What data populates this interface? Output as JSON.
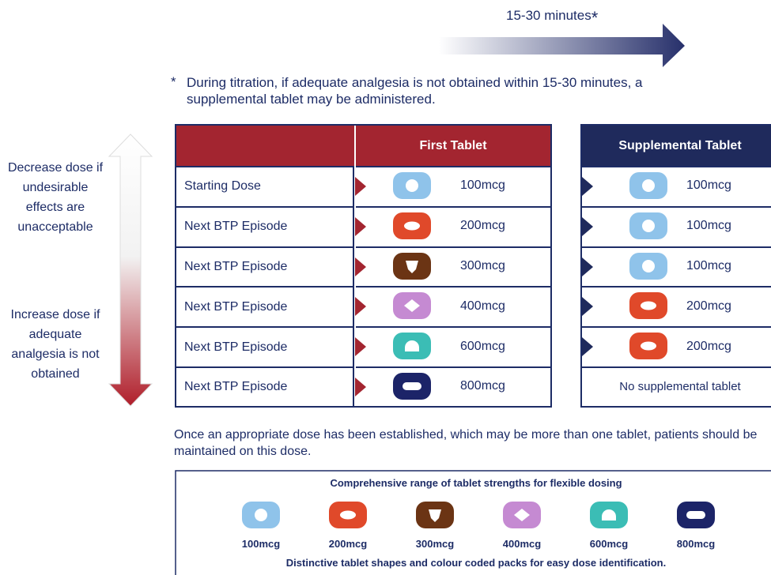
{
  "timing": {
    "label": "15-30 minutes",
    "mark": "*"
  },
  "footnote": {
    "mark": "*",
    "text": "During titration, if adequate analgesia is not obtained within 15-30 minutes, a supplemental tablet may be administered."
  },
  "side": {
    "decrease": "Decrease dose if undesirable effects are unacceptable",
    "increase": "Increase dose if adequate analgesia is not obtained"
  },
  "table": {
    "headers": {
      "first": "First Tablet",
      "supplemental": "Supplemental Tablet"
    },
    "rows": [
      {
        "label": "Starting Dose",
        "first": "100mcg",
        "supplemental": "100mcg"
      },
      {
        "label": "Next BTP Episode",
        "first": "200mcg",
        "supplemental": "100mcg"
      },
      {
        "label": "Next BTP Episode",
        "first": "300mcg",
        "supplemental": "100mcg"
      },
      {
        "label": "Next BTP Episode",
        "first": "400mcg",
        "supplemental": "200mcg"
      },
      {
        "label": "Next BTP Episode",
        "first": "600mcg",
        "supplemental": "200mcg"
      },
      {
        "label": "Next BTP Episode",
        "first": "800mcg",
        "supplemental": "No supplemental tablet"
      }
    ]
  },
  "note": "Once an appropriate dose has been established, which may be more than one tablet, patients should be maintained on this dose.",
  "range": {
    "title": "Comprehensive range of tablet strengths for flexible dosing",
    "strengths": [
      "100mcg",
      "200mcg",
      "300mcg",
      "400mcg",
      "600mcg",
      "800mcg"
    ],
    "footer": "Distinctive tablet shapes and colour coded packs for easy dose identification."
  }
}
